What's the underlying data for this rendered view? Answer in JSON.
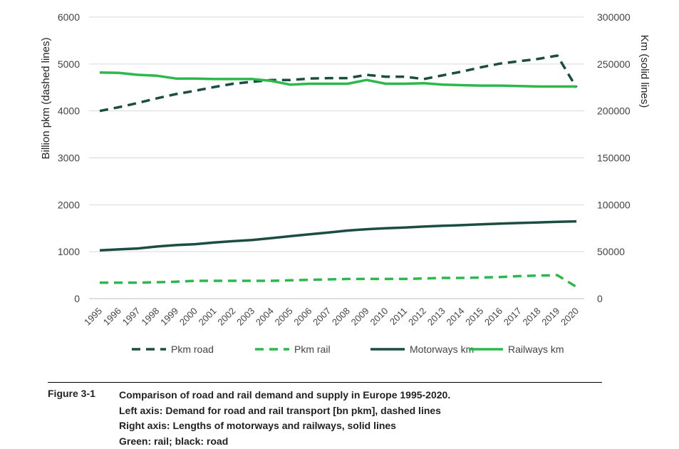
{
  "chart_data": {
    "type": "line",
    "categories": [
      "1995",
      "1996",
      "1997",
      "1998",
      "1999",
      "2000",
      "2001",
      "2002",
      "2003",
      "2004",
      "2005",
      "2006",
      "2007",
      "2008",
      "2009",
      "2010",
      "2011",
      "2012",
      "2013",
      "2014",
      "2015",
      "2016",
      "2017",
      "2018",
      "2019",
      "2020"
    ],
    "ylabel_left": "Billion pkm (dashed lines)",
    "ylabel_right": "Km (solid lines)",
    "ylim_left": [
      0,
      6000
    ],
    "ylim_right": [
      0,
      300000
    ],
    "yticks_left": [
      "0",
      "1000",
      "2000",
      "3000",
      "4000",
      "5000",
      "6000"
    ],
    "yticks_right": [
      "0",
      "50000",
      "100000",
      "150000",
      "200000",
      "250000",
      "300000"
    ],
    "grid": true,
    "legend_position": "bottom",
    "series": [
      {
        "name": "Pkm road",
        "axis": "left",
        "style": "dashed",
        "color": "#1b4d43",
        "values": [
          4000,
          4080,
          4170,
          4270,
          4360,
          4430,
          4510,
          4580,
          4620,
          4660,
          4660,
          4690,
          4700,
          4700,
          4770,
          4730,
          4730,
          4680,
          4760,
          4840,
          4930,
          5010,
          5060,
          5110,
          5180,
          4500
        ]
      },
      {
        "name": "Pkm rail",
        "axis": "left",
        "style": "dashed",
        "color": "#2db84d",
        "values": [
          340,
          340,
          340,
          350,
          360,
          380,
          380,
          380,
          380,
          380,
          390,
          400,
          410,
          420,
          420,
          420,
          420,
          430,
          440,
          440,
          450,
          460,
          480,
          490,
          500,
          250
        ]
      },
      {
        "name": "Motorways km",
        "axis": "right",
        "style": "solid",
        "color": "#1b4d43",
        "values": [
          51500,
          52500,
          53500,
          55500,
          57000,
          58000,
          59800,
          61200,
          62500,
          64500,
          66500,
          68500,
          70500,
          72500,
          74000,
          75000,
          75800,
          76800,
          77600,
          78300,
          79200,
          80000,
          80600,
          81200,
          81800,
          82300
        ]
      },
      {
        "name": "Railways km",
        "axis": "right",
        "style": "solid",
        "color": "#2db84d",
        "values": [
          241000,
          240500,
          238500,
          237500,
          234500,
          234500,
          234000,
          234000,
          234000,
          232000,
          228000,
          229000,
          229000,
          229000,
          233000,
          229000,
          229000,
          229500,
          228000,
          227500,
          227000,
          227000,
          226500,
          226000,
          226000,
          226000
        ]
      }
    ]
  },
  "caption": {
    "label": "Figure 3-1",
    "lines": [
      "Comparison of road and rail demand and supply in Europe 1995-2020.",
      "Left axis: Demand for road and rail transport [bn pkm], dashed lines",
      "Right axis: Lengths of motorways and railways, solid lines",
      "Green: rail; black: road"
    ]
  }
}
